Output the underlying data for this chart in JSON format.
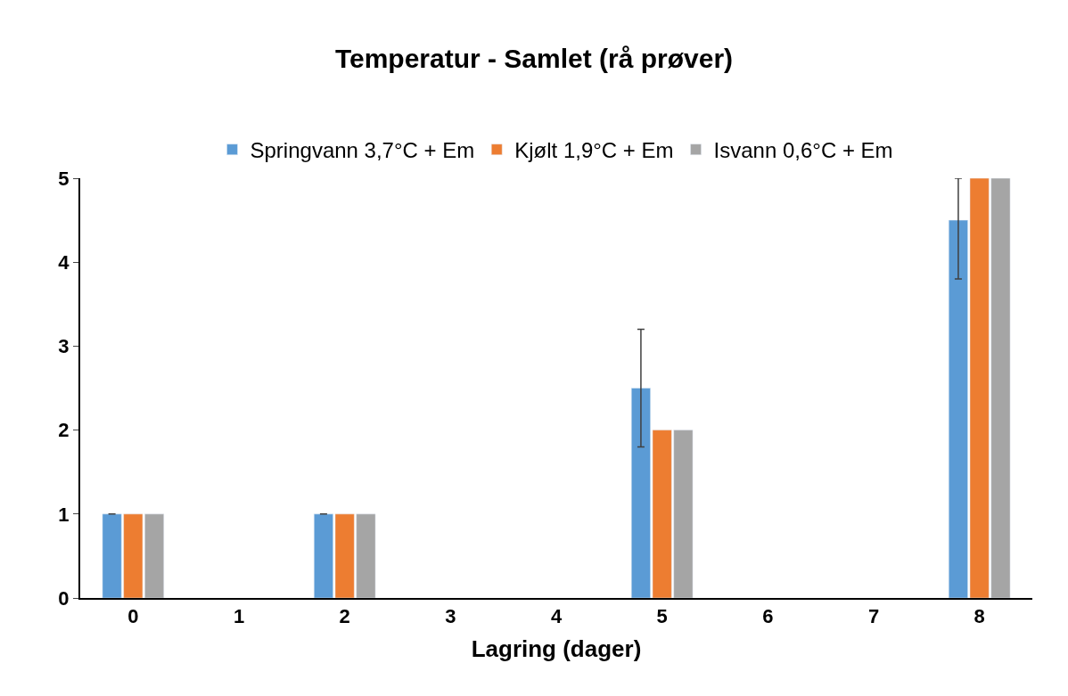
{
  "chart_data": {
    "type": "bar",
    "title": "Temperatur - Samlet (rå prøver)",
    "xlabel": "Lagring (dager)",
    "categories": [
      "0",
      "1",
      "2",
      "3",
      "4",
      "5",
      "6",
      "7",
      "8"
    ],
    "series": [
      {
        "name": "Springvann 3,7°C + Em",
        "color": "#5b9bd5",
        "values": [
          1,
          null,
          1,
          null,
          null,
          2.5,
          null,
          null,
          4.5
        ],
        "errors": [
          null,
          null,
          null,
          null,
          null,
          [
            1.8,
            3.2
          ],
          null,
          null,
          [
            3.8,
            5
          ]
        ]
      },
      {
        "name": "Kjølt 1,9°C + Em",
        "color": "#ed7d31",
        "values": [
          1,
          null,
          1,
          null,
          null,
          2,
          null,
          null,
          5
        ]
      },
      {
        "name": "Isvann 0,6°C + Em",
        "color": "#a5a5a5",
        "values": [
          1,
          null,
          1,
          null,
          null,
          2,
          null,
          null,
          5
        ]
      }
    ],
    "ylim": [
      0,
      5
    ],
    "yticks": [
      0,
      1,
      2,
      3,
      4,
      5
    ],
    "grid": false,
    "legend": "top"
  }
}
